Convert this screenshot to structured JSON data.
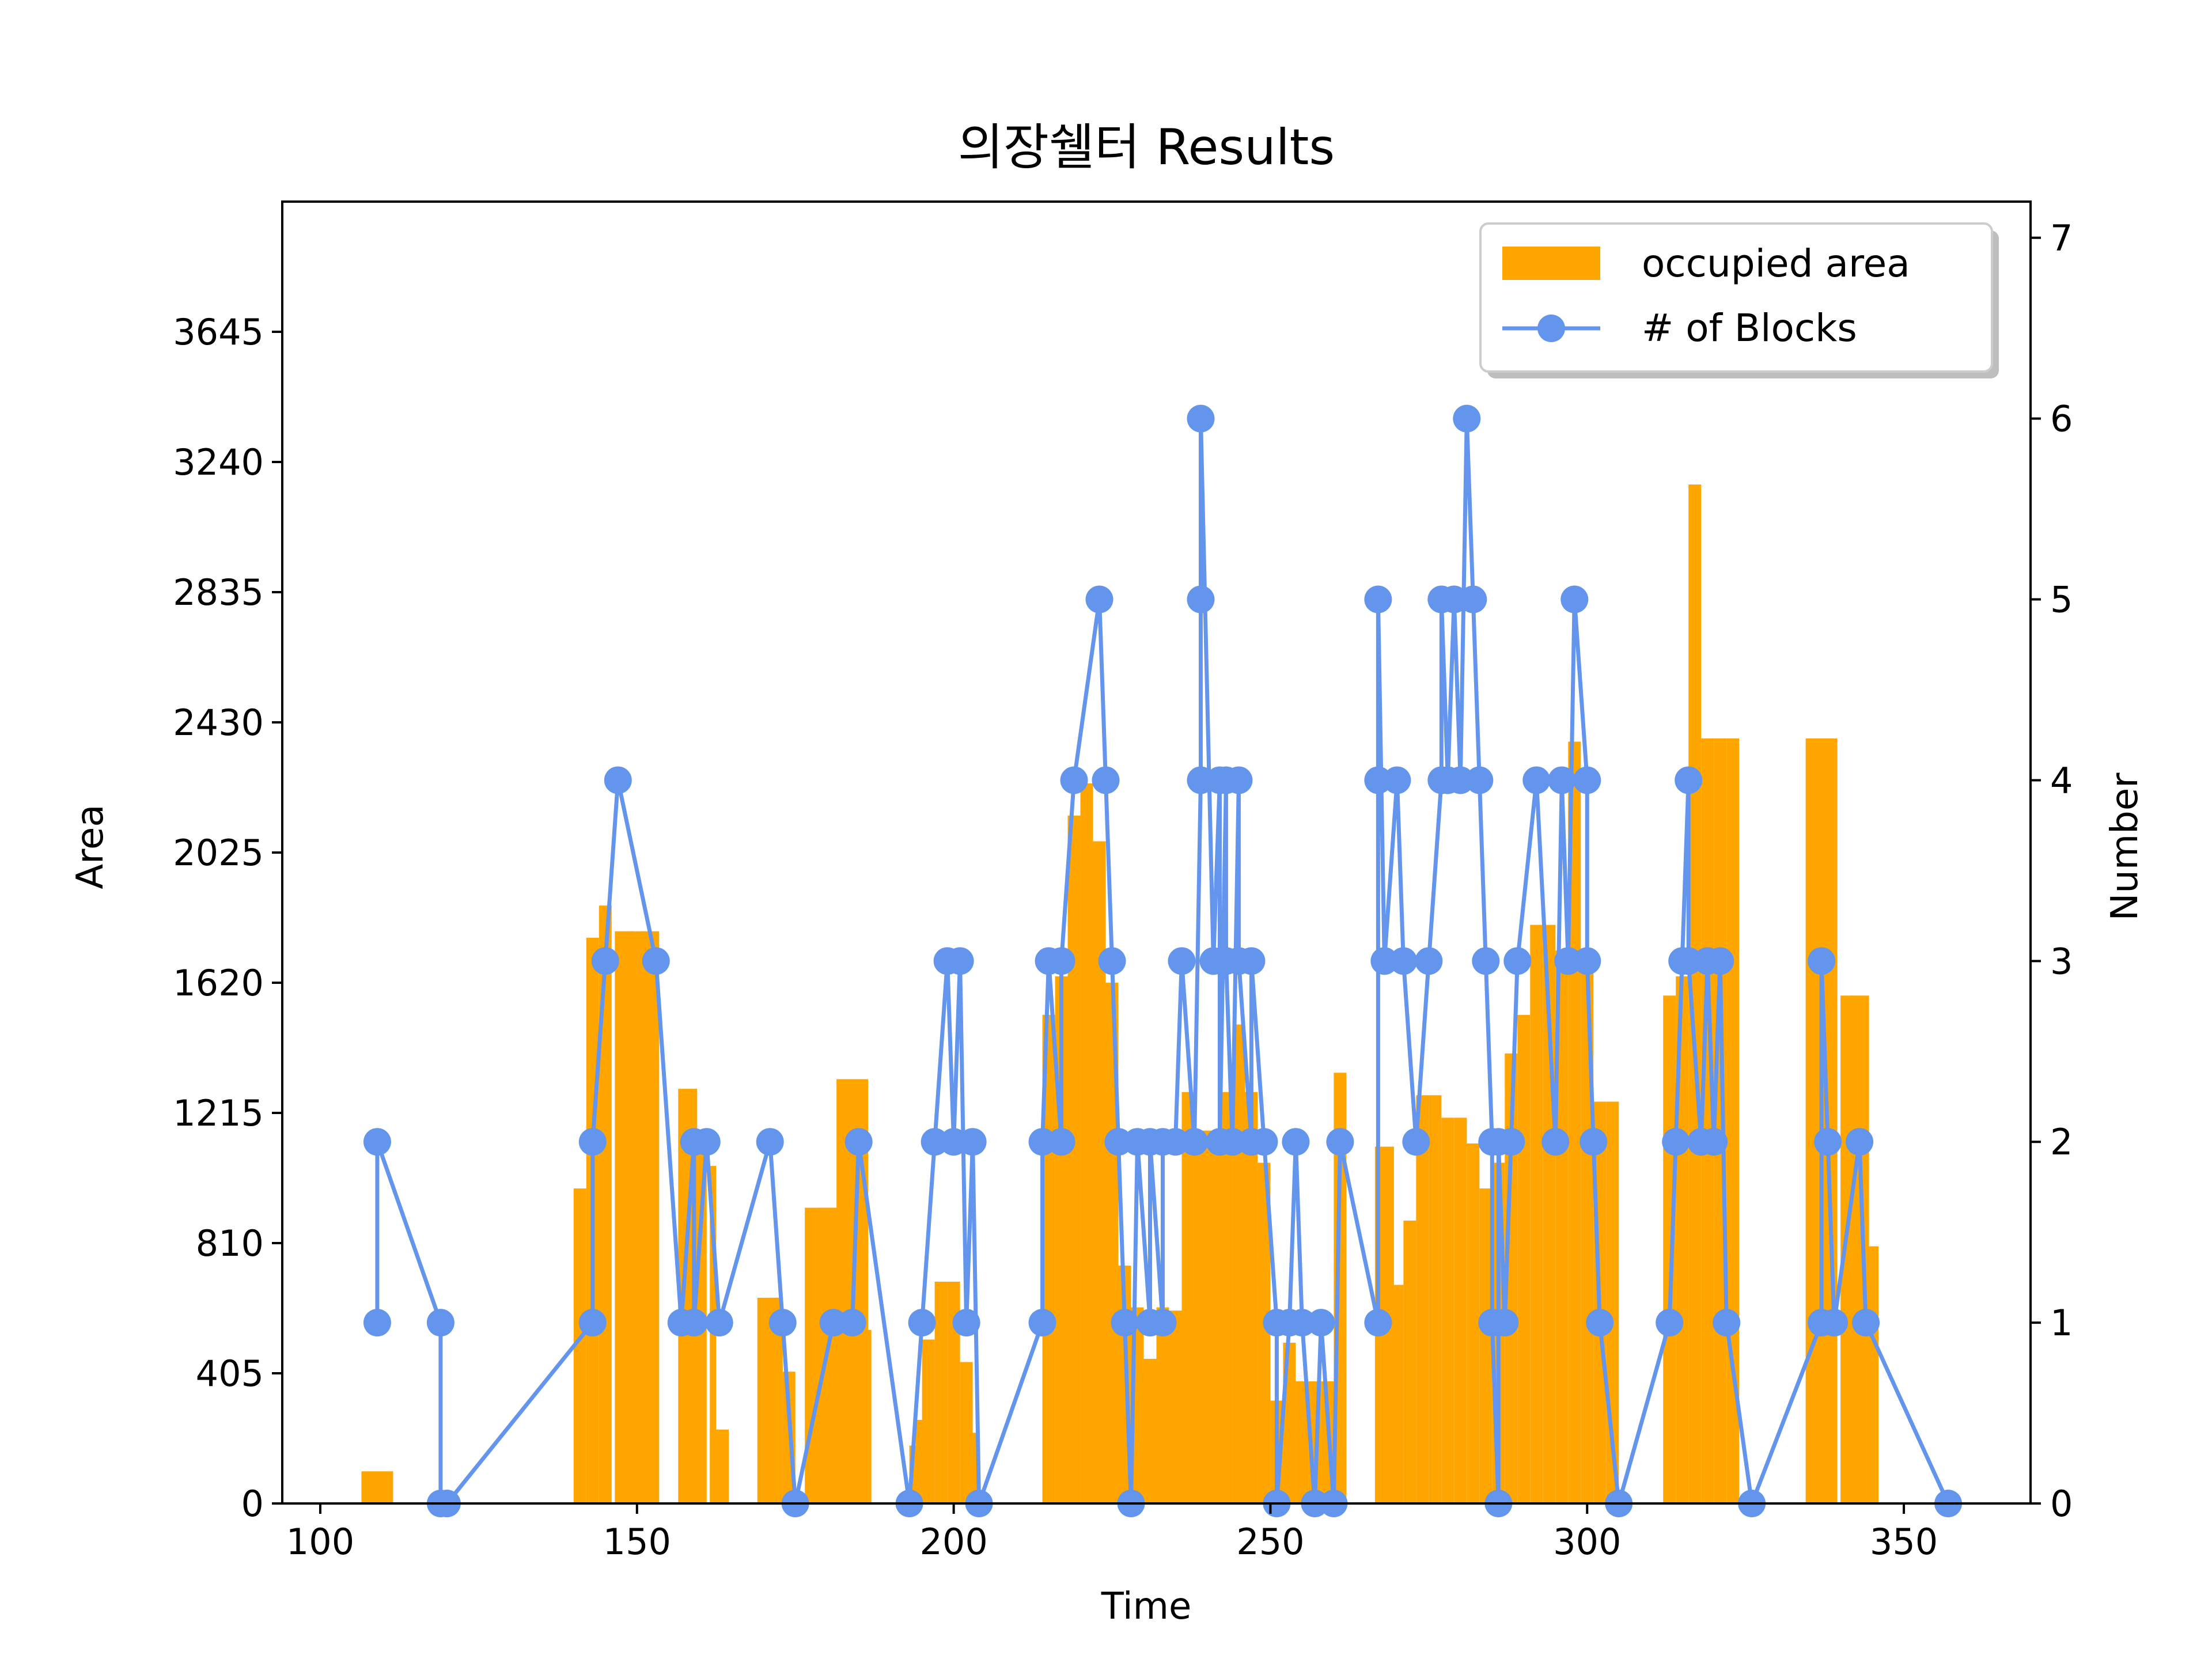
{
  "chart_data": {
    "type": "bar+line",
    "title": "의장쉘터 Results",
    "xlabel": "Time",
    "ylabel": "Area",
    "y2label": "Number",
    "xlim": [
      94,
      370
    ],
    "ylim": [
      0,
      4050
    ],
    "y2lim": [
      0,
      7.2
    ],
    "xticks": [
      100,
      150,
      200,
      250,
      300,
      350
    ],
    "yticks": [
      0,
      405,
      810,
      1215,
      1620,
      2025,
      2430,
      2835,
      3240,
      3645
    ],
    "y2ticks": [
      0,
      1,
      2,
      3,
      4,
      5,
      6,
      7
    ],
    "grid": false,
    "legend_position": "top-right",
    "colors": {
      "bars": "#FFA500",
      "line": "#6495ED"
    },
    "series": [
      {
        "name": "occupied area",
        "kind": "bar",
        "x": [
          109,
          141,
          143,
          145,
          148,
          150,
          152,
          158,
          160,
          162,
          163,
          171,
          172,
          174,
          179,
          181,
          184,
          186,
          194,
          195,
          196,
          198,
          200,
          202,
          203,
          215,
          217,
          219,
          221,
          223,
          225,
          227,
          229,
          231,
          233,
          235,
          237,
          239,
          241,
          243,
          245,
          247,
          249,
          251,
          253,
          255,
          257,
          259,
          261,
          268,
          270,
          272,
          274,
          276,
          278,
          280,
          282,
          284,
          286,
          288,
          290,
          292,
          294,
          296,
          298,
          300,
          302,
          304,
          313,
          315,
          317,
          319,
          321,
          323,
          337,
          341,
          343,
          345
        ],
        "widths": [
          5,
          2,
          2,
          2,
          3,
          3,
          3,
          3,
          2,
          1,
          3,
          4,
          2,
          2,
          5,
          5,
          5,
          2,
          2,
          2,
          2,
          2,
          2,
          2,
          2,
          2,
          2,
          2,
          2,
          2,
          2,
          2,
          2,
          2,
          2,
          2,
          2,
          2,
          2,
          2,
          2,
          2,
          2,
          2,
          2,
          2,
          2,
          2,
          2,
          3,
          2,
          2,
          2,
          2,
          2,
          2,
          2,
          2,
          2,
          2,
          2,
          2,
          2,
          2,
          2,
          2,
          2,
          2,
          2,
          2,
          2,
          2,
          2,
          2,
          5,
          2,
          3,
          2
        ],
        "values": [
          100,
          980,
          1760,
          1860,
          1780,
          1780,
          1780,
          1290,
          1150,
          1050,
          230,
          640,
          640,
          410,
          920,
          920,
          1320,
          540,
          180,
          260,
          510,
          690,
          690,
          440,
          220,
          1520,
          1640,
          2140,
          2240,
          2060,
          1620,
          740,
          610,
          450,
          610,
          600,
          1280,
          1160,
          1160,
          1280,
          1490,
          1280,
          1060,
          320,
          500,
          380,
          380,
          380,
          1340,
          1110,
          680,
          880,
          1270,
          1270,
          1200,
          1200,
          1120,
          980,
          1060,
          1400,
          1520,
          1800,
          1800,
          1720,
          2370,
          1700,
          1250,
          1250,
          1580,
          1640,
          3170,
          2380,
          2380,
          2380,
          2380,
          1580,
          1580,
          800
        ]
      },
      {
        "name": "# of Blocks",
        "kind": "line",
        "x": [
          109,
          109,
          119,
          119,
          120,
          143,
          143,
          145,
          147,
          153,
          157,
          159,
          159,
          161,
          163,
          171,
          173,
          175,
          181,
          184,
          185,
          193,
          195,
          197,
          199,
          200,
          201,
          202,
          203,
          204,
          214,
          214,
          215,
          217,
          217,
          219,
          223,
          224,
          225,
          226,
          227,
          228,
          229,
          231,
          231,
          233,
          233,
          235,
          236,
          238,
          239,
          239,
          239,
          241,
          242,
          242,
          243,
          243,
          244,
          245,
          245,
          247,
          247,
          249,
          251,
          251,
          253,
          254,
          255,
          257,
          258,
          260,
          261,
          267,
          267,
          267,
          268,
          270,
          271,
          273,
          275,
          277,
          277,
          278,
          279,
          280,
          281,
          282,
          283,
          284,
          285,
          285,
          286,
          286,
          287,
          288,
          289,
          292,
          295,
          296,
          297,
          298,
          300,
          300,
          301,
          302,
          305,
          313,
          314,
          315,
          316,
          316,
          318,
          319,
          320,
          321,
          322,
          326,
          337,
          337,
          338,
          339,
          343,
          344,
          357
        ],
        "values": [
          1,
          2,
          1,
          0,
          0,
          1,
          2,
          3,
          4,
          3,
          1,
          2,
          1,
          2,
          1,
          2,
          1,
          0,
          1,
          1,
          2,
          0,
          1,
          2,
          3,
          2,
          3,
          1,
          2,
          0,
          1,
          2,
          3,
          2,
          3,
          4,
          5,
          4,
          3,
          2,
          1,
          0,
          2,
          1,
          2,
          1,
          2,
          2,
          3,
          2,
          4,
          5,
          6,
          3,
          4,
          2,
          4,
          3,
          2,
          4,
          3,
          2,
          3,
          2,
          1,
          0,
          1,
          2,
          1,
          0,
          1,
          0,
          2,
          1,
          4,
          5,
          3,
          4,
          3,
          2,
          3,
          4,
          5,
          4,
          5,
          4,
          6,
          5,
          4,
          3,
          2,
          1,
          0,
          2,
          1,
          2,
          3,
          4,
          2,
          4,
          3,
          5,
          4,
          3,
          2,
          1,
          0,
          1,
          2,
          3,
          4,
          3,
          2,
          3,
          2,
          3,
          1,
          0,
          1,
          3,
          2,
          1,
          2,
          1,
          0
        ]
      }
    ]
  }
}
